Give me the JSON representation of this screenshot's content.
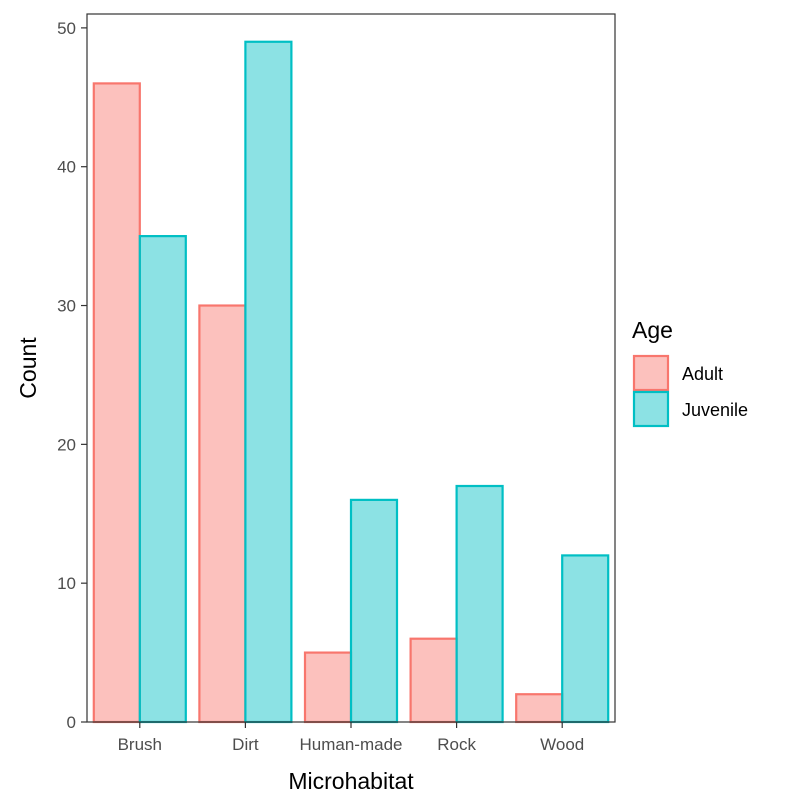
{
  "chart_data": {
    "type": "bar",
    "categories": [
      "Brush",
      "Dirt",
      "Human-made",
      "Rock",
      "Wood"
    ],
    "series": [
      {
        "name": "Adult",
        "values": [
          46,
          30,
          5,
          6,
          2
        ],
        "fill": "#F8766D",
        "fill_opacity": 0.45
      },
      {
        "name": "Juvenile",
        "values": [
          35,
          49,
          16,
          17,
          12
        ],
        "fill": "#00BFC4",
        "fill_opacity": 0.45
      }
    ],
    "xlabel": "Microhabitat",
    "ylabel": "Count",
    "ylim": [
      0,
      51
    ],
    "yticks": [
      0,
      10,
      20,
      30,
      40,
      50
    ],
    "grid": false,
    "legend": {
      "title": "Age",
      "position": "right"
    }
  }
}
